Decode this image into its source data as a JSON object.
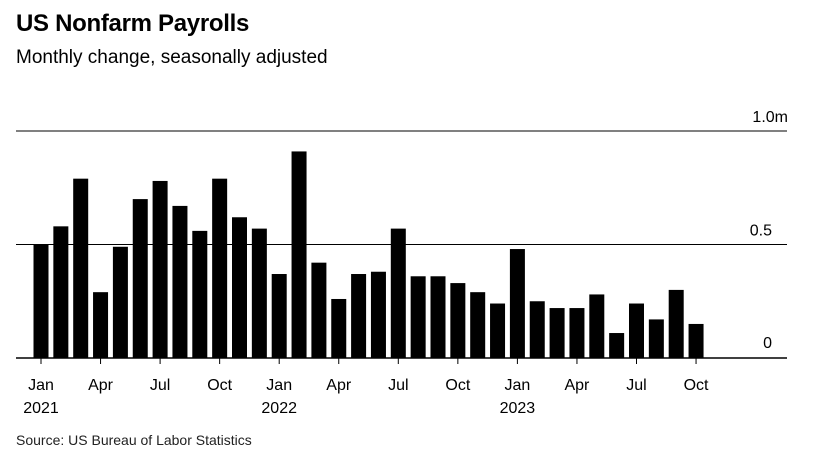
{
  "header": {
    "title": "US Nonfarm Payrolls",
    "subtitle": "Monthly change, seasonally adjusted"
  },
  "footer": {
    "source": "Source: US Bureau of Labor Statistics"
  },
  "chart_data": {
    "type": "bar",
    "title": "US Nonfarm Payrolls",
    "subtitle": "Monthly change, seasonally adjusted",
    "unit": "jobs (millions)",
    "categories": [
      "Jan 2021",
      "Feb 2021",
      "Mar 2021",
      "Apr 2021",
      "May 2021",
      "Jun 2021",
      "Jul 2021",
      "Aug 2021",
      "Sep 2021",
      "Oct 2021",
      "Nov 2021",
      "Dec 2021",
      "Jan 2022",
      "Feb 2022",
      "Mar 2022",
      "Apr 2022",
      "May 2022",
      "Jun 2022",
      "Jul 2022",
      "Aug 2022",
      "Sep 2022",
      "Oct 2022",
      "Nov 2022",
      "Dec 2022",
      "Jan 2023",
      "Feb 2023",
      "Mar 2023",
      "Apr 2023",
      "May 2023",
      "Jun 2023",
      "Jul 2023",
      "Aug 2023",
      "Sep 2023",
      "Oct 2023"
    ],
    "values": [
      0.5,
      0.58,
      0.79,
      0.29,
      0.49,
      0.7,
      0.78,
      0.67,
      0.56,
      0.79,
      0.62,
      0.57,
      0.37,
      0.91,
      0.42,
      0.26,
      0.37,
      0.38,
      0.57,
      0.36,
      0.36,
      0.33,
      0.29,
      0.24,
      0.48,
      0.25,
      0.22,
      0.22,
      0.28,
      0.11,
      0.24,
      0.17,
      0.3,
      0.15
    ],
    "ylim": [
      0,
      1.0
    ],
    "yticks": [
      {
        "value": 0,
        "label": "0"
      },
      {
        "value": 0.5,
        "label": "0.5"
      },
      {
        "value": 1.0,
        "label": "1.0m"
      }
    ],
    "xticks": [
      {
        "index": 0,
        "label": "Jan",
        "year": "2021"
      },
      {
        "index": 3,
        "label": "Apr",
        "year": ""
      },
      {
        "index": 6,
        "label": "Jul",
        "year": ""
      },
      {
        "index": 9,
        "label": "Oct",
        "year": ""
      },
      {
        "index": 12,
        "label": "Jan",
        "year": "2022"
      },
      {
        "index": 15,
        "label": "Apr",
        "year": ""
      },
      {
        "index": 18,
        "label": "Jul",
        "year": ""
      },
      {
        "index": 21,
        "label": "Oct",
        "year": ""
      },
      {
        "index": 24,
        "label": "Jan",
        "year": "2023"
      },
      {
        "index": 27,
        "label": "Apr",
        "year": ""
      },
      {
        "index": 30,
        "label": "Jul",
        "year": ""
      },
      {
        "index": 33,
        "label": "Oct",
        "year": ""
      }
    ],
    "bar_color": "#000000",
    "grid": true,
    "legend": "none"
  }
}
